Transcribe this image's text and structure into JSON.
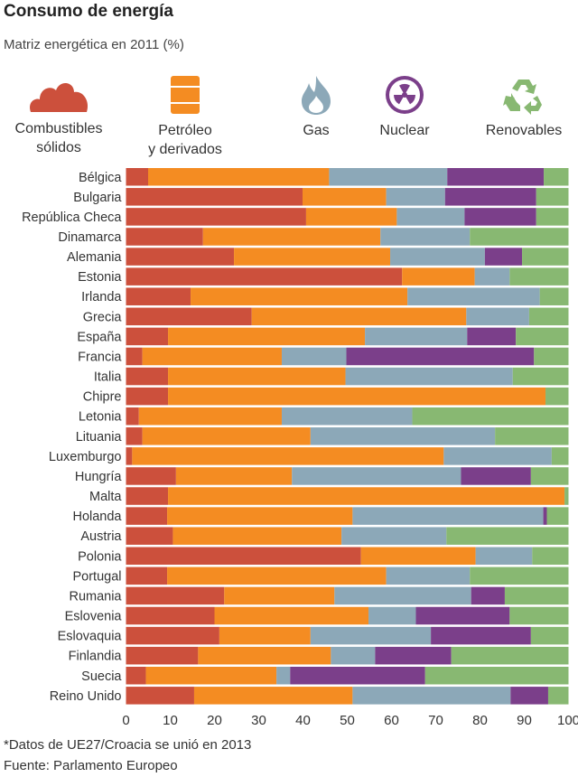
{
  "title": "Consumo de energía",
  "subtitle": "Matriz energética en 2011 (%)",
  "legend": [
    {
      "label1": "Combustibles",
      "label2": "sólidos",
      "icon": "coal-pile-icon",
      "color": "#cc503c"
    },
    {
      "label1": "Petróleo",
      "label2": "y derivados",
      "icon": "oil-barrel-icon",
      "color": "#f48c22"
    },
    {
      "label1": "Gas",
      "label2": "",
      "icon": "gas-flame-icon",
      "color": "#8ca8b8"
    },
    {
      "label1": "Nuclear",
      "label2": "",
      "icon": "radiation-icon",
      "color": "#7b3f8a"
    },
    {
      "label1": "Renovables",
      "label2": "",
      "icon": "recycle-icon",
      "color": "#88b872"
    }
  ],
  "footnote": "*Datos de UE27/Croacia se unió en 2013",
  "source": "Fuente: Parlamento Europeo",
  "chart_data": {
    "type": "bar",
    "orientation": "horizontal",
    "stacked": true,
    "title": "Consumo de energía",
    "subtitle": "Matriz energética en 2011 (%)",
    "xlim": [
      0,
      100
    ],
    "xticks": [
      0,
      10,
      20,
      30,
      40,
      50,
      60,
      70,
      80,
      90,
      100
    ],
    "legend_placement": "top",
    "categories": [
      "Bélgica",
      "Bulgaria",
      "República Checa",
      "Dinamarca",
      "Alemania",
      "Estonia",
      "Irlanda",
      "Grecia",
      "España",
      "Francia",
      "Italia",
      "Chipre",
      "Letonia",
      "Lituania",
      "Luxemburgo",
      "Hungría",
      "Malta",
      "Holanda",
      "Austria",
      "Polonia",
      "Portugal",
      "Rumania",
      "Eslovenia",
      "Eslovaquia",
      "Finlandia",
      "Suecia",
      "Reino Unido"
    ],
    "series": [
      {
        "name": "Combustibles sólidos",
        "color": "#cc503c",
        "values": [
          5.0,
          39.9,
          40.7,
          17.4,
          24.4,
          62.4,
          14.6,
          28.4,
          9.5,
          3.7,
          9.5,
          9.5,
          2.9,
          3.7,
          1.4,
          11.3,
          9.5,
          9.3,
          10.6,
          53.1,
          9.3,
          22.2,
          20.0,
          21.1,
          16.3,
          4.5,
          15.4
        ]
      },
      {
        "name": "Petróleo y derivados",
        "color": "#f48c22",
        "values": [
          40.9,
          18.9,
          20.5,
          40.1,
          35.3,
          16.4,
          49.0,
          48.5,
          44.5,
          31.5,
          40.1,
          85.3,
          32.3,
          38.0,
          70.4,
          26.2,
          89.6,
          41.9,
          38.1,
          25.9,
          49.5,
          24.9,
          34.8,
          20.6,
          30.0,
          29.5,
          35.8
        ]
      },
      {
        "name": "Gas",
        "color": "#8ca8b8",
        "values": [
          26.7,
          13.3,
          15.3,
          20.2,
          21.4,
          7.9,
          29.9,
          14.2,
          23.1,
          14.6,
          37.8,
          0,
          29.5,
          41.7,
          24.4,
          38.2,
          0,
          43.1,
          23.7,
          12.8,
          18.9,
          30.9,
          10.7,
          27.2,
          10.0,
          3.1,
          35.7
        ]
      },
      {
        "name": "Nuclear",
        "color": "#7b3f8a",
        "values": [
          21.8,
          20.6,
          16.2,
          0,
          8.4,
          0,
          0,
          0,
          11.0,
          42.4,
          0,
          0,
          0,
          0,
          0,
          15.8,
          0,
          0.8,
          0,
          0,
          0,
          7.6,
          21.2,
          22.6,
          17.2,
          30.5,
          8.5
        ]
      },
      {
        "name": "Renovables",
        "color": "#88b872",
        "values": [
          5.6,
          7.3,
          7.3,
          22.3,
          10.5,
          13.3,
          6.5,
          8.9,
          11.9,
          7.8,
          12.6,
          5.2,
          35.3,
          16.6,
          3.8,
          8.5,
          0.9,
          4.9,
          27.6,
          8.2,
          22.3,
          14.4,
          13.3,
          8.5,
          26.5,
          32.4,
          4.6
        ]
      }
    ]
  }
}
